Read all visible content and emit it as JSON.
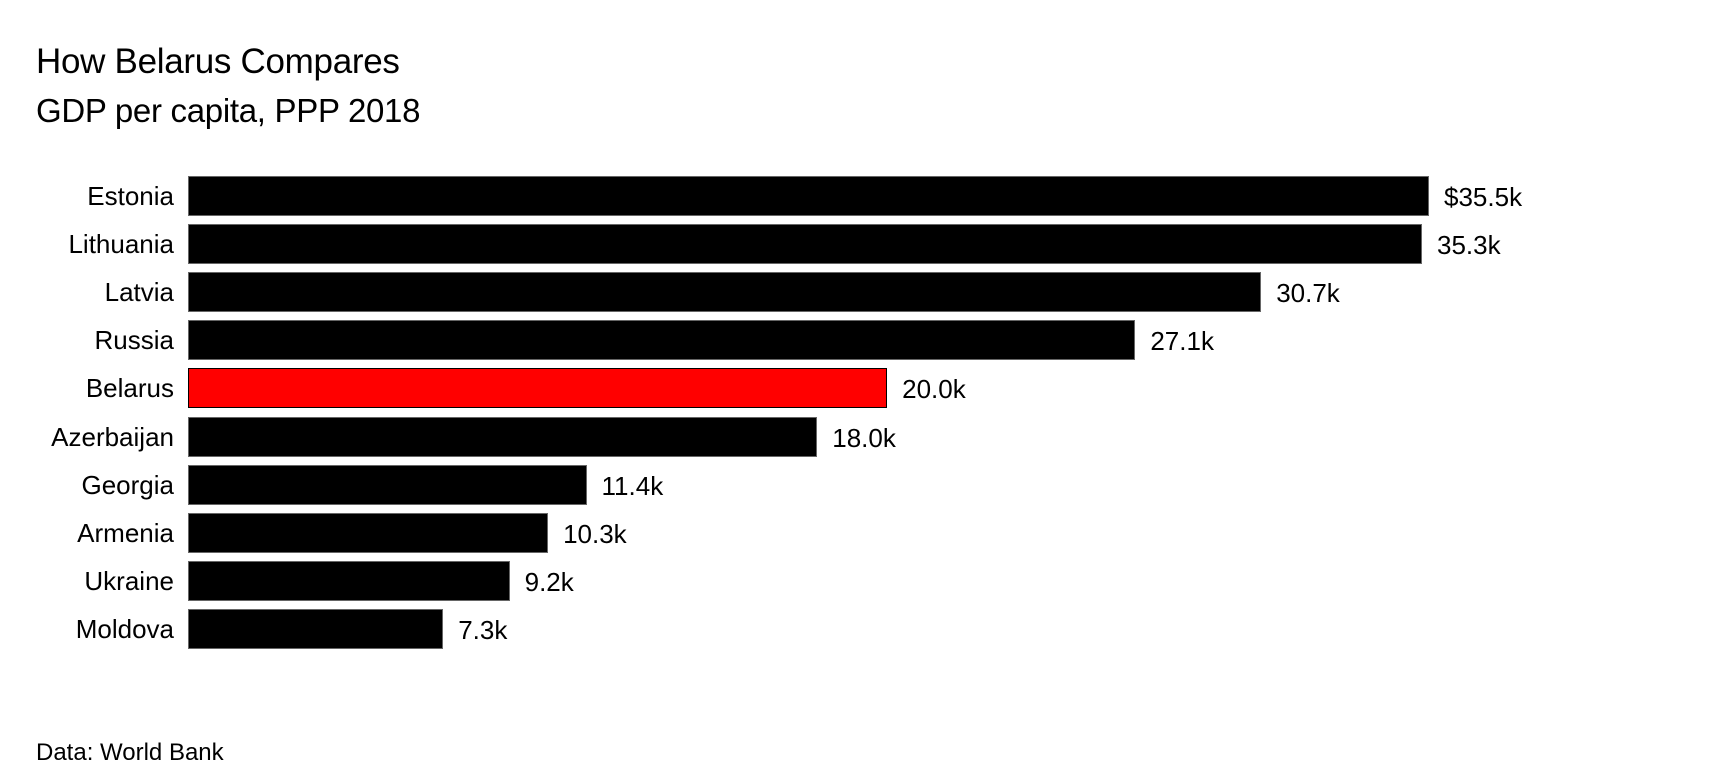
{
  "header": {
    "title": "How Belarus Compares",
    "subtitle": "GDP per capita, PPP 2018"
  },
  "footer": {
    "source": "Data: World Bank"
  },
  "colors": {
    "bar": "#000000",
    "highlight": "#ff0000",
    "background": "#ffffff"
  },
  "chart_data": {
    "type": "bar",
    "orientation": "horizontal",
    "title": "How Belarus Compares",
    "subtitle": "GDP per capita, PPP 2018",
    "xlabel": "",
    "ylabel": "",
    "unit": "thousand USD (PPP)",
    "categories": [
      "Estonia",
      "Lithuania",
      "Latvia",
      "Russia",
      "Belarus",
      "Azerbaijan",
      "Georgia",
      "Armenia",
      "Ukraine",
      "Moldova"
    ],
    "values": [
      35.5,
      35.3,
      30.7,
      27.1,
      20.0,
      18.0,
      11.4,
      10.3,
      9.2,
      7.3
    ],
    "value_labels": [
      "$35.5k",
      "35.3k",
      "30.7k",
      "27.1k",
      "20.0k",
      "18.0k",
      "11.4k",
      "10.3k",
      "9.2k",
      "7.3k"
    ],
    "highlight": "Belarus",
    "grid": false,
    "legend": null,
    "source": "Data: World Bank"
  }
}
